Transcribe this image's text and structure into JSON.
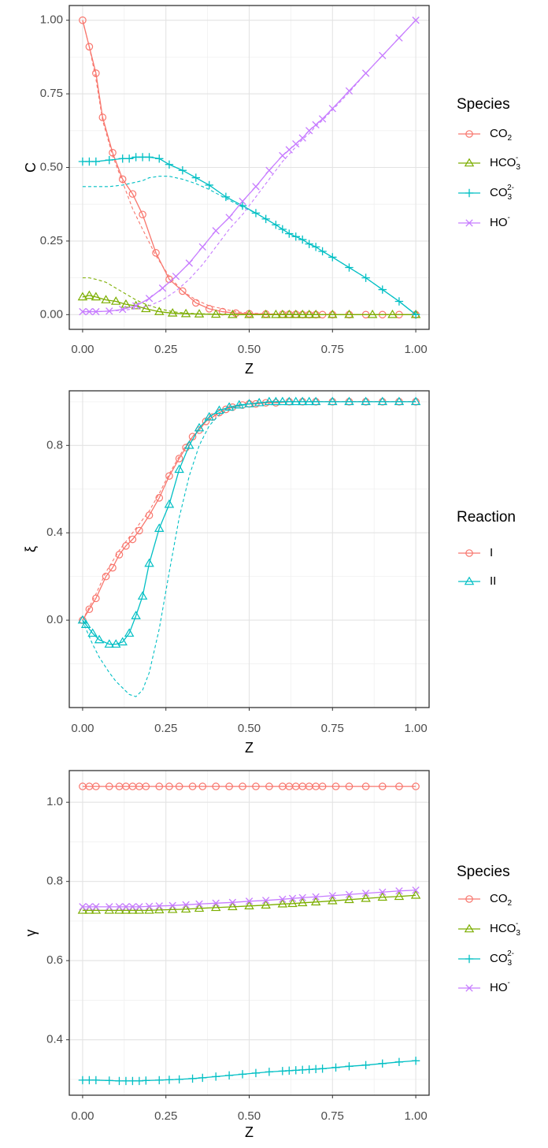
{
  "chart_data": [
    {
      "type": "line",
      "xlabel": "Z",
      "ylabel": "C",
      "xlim": [
        -0.04,
        1.04
      ],
      "ylim": [
        -0.05,
        1.05
      ],
      "xticks": [
        "0.00",
        "0.25",
        "0.50",
        "0.75",
        "1.00"
      ],
      "yticks": [
        "0.00",
        "0.25",
        "0.50",
        "0.75",
        "1.00"
      ],
      "grid": true,
      "legend": {
        "title": "Species",
        "position": "right"
      },
      "series": [
        {
          "name": "CO2",
          "name_base": "CO",
          "name_sub": "2",
          "name_sup": "",
          "color": "#F8766D",
          "marker": "circle",
          "x": [
            0,
            0.02,
            0.04,
            0.06,
            0.09,
            0.12,
            0.15,
            0.18,
            0.22,
            0.26,
            0.3,
            0.34,
            0.38,
            0.42,
            0.46,
            0.5,
            0.55,
            0.6,
            0.62,
            0.64,
            0.66,
            0.68,
            0.7,
            0.72,
            0.75,
            0.8,
            0.85,
            0.9,
            0.95,
            1.0
          ],
          "y": [
            1.0,
            0.91,
            0.82,
            0.67,
            0.55,
            0.46,
            0.41,
            0.34,
            0.21,
            0.12,
            0.08,
            0.04,
            0.02,
            0.01,
            0.005,
            0.003,
            0.002,
            0.001,
            0.001,
            0.001,
            0,
            0,
            0,
            0,
            0,
            0,
            0,
            0,
            0,
            0
          ],
          "dashed_y": [
            1.0,
            0.91,
            0.8,
            0.66,
            0.54,
            0.45,
            0.36,
            0.29,
            0.2,
            0.13,
            0.08,
            0.05,
            0.03,
            0.02,
            0.01,
            0.005,
            0.003,
            0.002,
            0.001,
            0.001,
            0,
            0,
            0,
            0,
            0,
            0,
            0,
            0,
            0,
            0
          ]
        },
        {
          "name": "HCO3-",
          "name_base": "HCO",
          "name_sub": "3",
          "name_sup": "-",
          "color": "#7CAE00",
          "marker": "triangle",
          "x": [
            0,
            0.02,
            0.04,
            0.07,
            0.1,
            0.13,
            0.16,
            0.19,
            0.23,
            0.27,
            0.31,
            0.35,
            0.4,
            0.45,
            0.5,
            0.55,
            0.58,
            0.6,
            0.62,
            0.64,
            0.66,
            0.68,
            0.7,
            0.75,
            0.8,
            0.87,
            0.93,
            1.0
          ],
          "y": [
            0.06,
            0.065,
            0.06,
            0.05,
            0.045,
            0.035,
            0.03,
            0.02,
            0.01,
            0.005,
            0.003,
            0.002,
            0.001,
            0,
            0,
            0,
            0,
            0,
            0,
            0,
            0,
            0,
            0,
            0,
            0,
            0,
            0,
            0
          ],
          "dashed_y": [
            0.125,
            0.125,
            0.12,
            0.11,
            0.09,
            0.07,
            0.05,
            0.035,
            0.02,
            0.01,
            0.005,
            0.003,
            0.002,
            0.001,
            0,
            0,
            0,
            0,
            0,
            0,
            0,
            0,
            0,
            0,
            0,
            0,
            0,
            0
          ]
        },
        {
          "name": "CO32-",
          "name_base": "CO",
          "name_sub": "3",
          "name_sup": "2-",
          "color": "#00BFC4",
          "marker": "plus",
          "x": [
            0,
            0.02,
            0.04,
            0.08,
            0.12,
            0.14,
            0.16,
            0.18,
            0.2,
            0.23,
            0.26,
            0.3,
            0.34,
            0.38,
            0.43,
            0.48,
            0.52,
            0.55,
            0.58,
            0.6,
            0.62,
            0.64,
            0.66,
            0.68,
            0.7,
            0.72,
            0.75,
            0.8,
            0.85,
            0.9,
            0.95,
            1.0
          ],
          "y": [
            0.52,
            0.52,
            0.52,
            0.525,
            0.53,
            0.53,
            0.535,
            0.535,
            0.535,
            0.53,
            0.51,
            0.49,
            0.465,
            0.44,
            0.4,
            0.37,
            0.345,
            0.325,
            0.305,
            0.29,
            0.275,
            0.265,
            0.255,
            0.24,
            0.23,
            0.215,
            0.195,
            0.16,
            0.125,
            0.085,
            0.045,
            0.0
          ],
          "dashed_y": [
            0.435,
            0.435,
            0.435,
            0.435,
            0.44,
            0.445,
            0.45,
            0.455,
            0.465,
            0.47,
            0.47,
            0.46,
            0.445,
            0.425,
            0.395,
            0.365,
            0.345,
            0.325,
            0.305,
            0.29,
            0.275,
            0.265,
            0.255,
            0.24,
            0.23,
            0.215,
            0.195,
            0.16,
            0.125,
            0.085,
            0.045,
            0.0
          ]
        },
        {
          "name": "HO-",
          "name_base": "HO",
          "name_sub": "",
          "name_sup": "-",
          "color": "#C77CFF",
          "marker": "cross",
          "x": [
            0,
            0.02,
            0.04,
            0.08,
            0.12,
            0.16,
            0.2,
            0.24,
            0.28,
            0.32,
            0.36,
            0.4,
            0.44,
            0.48,
            0.52,
            0.56,
            0.6,
            0.62,
            0.64,
            0.66,
            0.68,
            0.7,
            0.72,
            0.75,
            0.8,
            0.85,
            0.9,
            0.95,
            1.0
          ],
          "y": [
            0.01,
            0.01,
            0.01,
            0.012,
            0.018,
            0.03,
            0.055,
            0.09,
            0.13,
            0.175,
            0.23,
            0.285,
            0.33,
            0.385,
            0.435,
            0.49,
            0.54,
            0.56,
            0.58,
            0.6,
            0.625,
            0.645,
            0.665,
            0.7,
            0.76,
            0.82,
            0.88,
            0.94,
            1.0
          ],
          "dashed_y": [
            0.01,
            0.01,
            0.01,
            0.012,
            0.015,
            0.02,
            0.03,
            0.05,
            0.08,
            0.12,
            0.17,
            0.23,
            0.29,
            0.34,
            0.4,
            0.46,
            0.52,
            0.545,
            0.57,
            0.595,
            0.615,
            0.64,
            0.66,
            0.695,
            0.755,
            0.82,
            0.88,
            0.94,
            1.0
          ]
        }
      ]
    },
    {
      "type": "line",
      "xlabel": "Z",
      "ylabel": "ξ",
      "xlim": [
        -0.04,
        1.04
      ],
      "ylim": [
        -0.4,
        1.05
      ],
      "xticks": [
        "0.00",
        "0.25",
        "0.50",
        "0.75",
        "1.00"
      ],
      "yticks": [
        "0.0",
        "0.4",
        "0.8"
      ],
      "grid": true,
      "legend": {
        "title": "Reaction",
        "position": "right"
      },
      "series": [
        {
          "name": "I",
          "name_base": "I",
          "name_sub": "",
          "name_sup": "",
          "color": "#F8766D",
          "marker": "circle",
          "x": [
            0,
            0.02,
            0.04,
            0.07,
            0.09,
            0.11,
            0.13,
            0.15,
            0.17,
            0.2,
            0.23,
            0.26,
            0.29,
            0.31,
            0.33,
            0.35,
            0.37,
            0.39,
            0.41,
            0.43,
            0.45,
            0.48,
            0.5,
            0.52,
            0.55,
            0.58,
            0.62,
            0.66,
            0.7,
            0.75,
            0.8,
            0.85,
            0.9,
            0.95,
            1.0
          ],
          "y": [
            0.0,
            0.05,
            0.1,
            0.2,
            0.24,
            0.3,
            0.34,
            0.37,
            0.41,
            0.48,
            0.56,
            0.66,
            0.74,
            0.79,
            0.84,
            0.87,
            0.91,
            0.93,
            0.95,
            0.965,
            0.975,
            0.985,
            0.99,
            0.99,
            0.995,
            0.995,
            1.0,
            1.0,
            1.0,
            1.0,
            1.0,
            1.0,
            1.0,
            1.0,
            1.0
          ],
          "dashed_y": [
            0.0,
            0.06,
            0.12,
            0.22,
            0.27,
            0.32,
            0.36,
            0.4,
            0.44,
            0.5,
            0.58,
            0.67,
            0.75,
            0.8,
            0.84,
            0.88,
            0.91,
            0.93,
            0.95,
            0.965,
            0.975,
            0.985,
            0.99,
            0.99,
            0.995,
            0.995,
            1.0,
            1.0,
            1.0,
            1.0,
            1.0,
            1.0,
            1.0,
            1.0,
            1.0
          ]
        },
        {
          "name": "II",
          "name_base": "II",
          "name_sub": "",
          "name_sup": "",
          "color": "#00BFC4",
          "marker": "triangle",
          "x": [
            0,
            0.01,
            0.03,
            0.05,
            0.08,
            0.1,
            0.12,
            0.14,
            0.16,
            0.18,
            0.2,
            0.23,
            0.26,
            0.29,
            0.32,
            0.35,
            0.38,
            0.41,
            0.44,
            0.47,
            0.5,
            0.53,
            0.56,
            0.58,
            0.6,
            0.62,
            0.64,
            0.66,
            0.68,
            0.7,
            0.75,
            0.8,
            0.85,
            0.9,
            0.95,
            1.0
          ],
          "y": [
            0.0,
            -0.02,
            -0.06,
            -0.09,
            -0.11,
            -0.11,
            -0.1,
            -0.06,
            0.02,
            0.11,
            0.26,
            0.42,
            0.53,
            0.69,
            0.8,
            0.88,
            0.93,
            0.96,
            0.975,
            0.985,
            0.99,
            0.995,
            1.0,
            1.0,
            1.0,
            1.0,
            1.0,
            1.0,
            1.0,
            1.0,
            1.0,
            1.0,
            1.0,
            1.0,
            1.0,
            1.0
          ],
          "dashed_y": [
            0.0,
            -0.04,
            -0.11,
            -0.17,
            -0.24,
            -0.28,
            -0.31,
            -0.34,
            -0.35,
            -0.32,
            -0.24,
            -0.04,
            0.22,
            0.47,
            0.66,
            0.8,
            0.89,
            0.94,
            0.965,
            0.98,
            0.99,
            0.995,
            1.0,
            1.0,
            1.0,
            1.0,
            1.0,
            1.0,
            1.0,
            1.0,
            1.0,
            1.0,
            1.0,
            1.0,
            1.0,
            1.0
          ]
        }
      ]
    },
    {
      "type": "line",
      "xlabel": "Z",
      "ylabel": "γ",
      "xlim": [
        -0.04,
        1.04
      ],
      "ylim": [
        0.26,
        1.08
      ],
      "xticks": [
        "0.00",
        "0.25",
        "0.50",
        "0.75",
        "1.00"
      ],
      "yticks": [
        "0.4",
        "0.6",
        "0.8",
        "1.0"
      ],
      "grid": true,
      "legend": {
        "title": "Species",
        "position": "right"
      },
      "series": [
        {
          "name": "CO2",
          "name_base": "CO",
          "name_sub": "2",
          "name_sup": "",
          "color": "#F8766D",
          "marker": "circle",
          "x": [
            0,
            0.02,
            0.04,
            0.08,
            0.11,
            0.13,
            0.15,
            0.17,
            0.19,
            0.23,
            0.26,
            0.29,
            0.33,
            0.36,
            0.4,
            0.44,
            0.48,
            0.52,
            0.56,
            0.6,
            0.62,
            0.64,
            0.66,
            0.68,
            0.7,
            0.72,
            0.76,
            0.8,
            0.85,
            0.9,
            0.95,
            1.0
          ],
          "y": [
            1.04,
            1.04,
            1.04,
            1.04,
            1.04,
            1.04,
            1.04,
            1.04,
            1.04,
            1.04,
            1.04,
            1.04,
            1.04,
            1.04,
            1.04,
            1.04,
            1.04,
            1.04,
            1.04,
            1.04,
            1.04,
            1.04,
            1.04,
            1.04,
            1.04,
            1.04,
            1.04,
            1.04,
            1.04,
            1.04,
            1.04,
            1.04
          ]
        },
        {
          "name": "HCO3-",
          "name_base": "HCO",
          "name_sub": "3",
          "name_sup": "-",
          "color": "#7CAE00",
          "marker": "triangle",
          "x": [
            0,
            0.02,
            0.04,
            0.08,
            0.11,
            0.13,
            0.15,
            0.17,
            0.2,
            0.23,
            0.27,
            0.31,
            0.35,
            0.4,
            0.45,
            0.5,
            0.55,
            0.6,
            0.63,
            0.66,
            0.7,
            0.75,
            0.8,
            0.85,
            0.9,
            0.95,
            1.0
          ],
          "y": [
            0.727,
            0.727,
            0.727,
            0.727,
            0.727,
            0.727,
            0.727,
            0.727,
            0.727,
            0.728,
            0.729,
            0.73,
            0.732,
            0.734,
            0.736,
            0.738,
            0.74,
            0.743,
            0.744,
            0.746,
            0.748,
            0.751,
            0.754,
            0.757,
            0.76,
            0.762,
            0.765
          ]
        },
        {
          "name": "CO32-",
          "name_base": "CO",
          "name_sub": "3",
          "name_sup": "2-",
          "color": "#00BFC4",
          "marker": "plus",
          "x": [
            0,
            0.02,
            0.04,
            0.08,
            0.11,
            0.13,
            0.15,
            0.17,
            0.19,
            0.23,
            0.26,
            0.29,
            0.33,
            0.36,
            0.4,
            0.44,
            0.48,
            0.52,
            0.56,
            0.6,
            0.62,
            0.64,
            0.66,
            0.68,
            0.7,
            0.72,
            0.76,
            0.8,
            0.85,
            0.9,
            0.95,
            1.0
          ],
          "y": [
            0.298,
            0.298,
            0.298,
            0.297,
            0.296,
            0.296,
            0.296,
            0.296,
            0.297,
            0.298,
            0.299,
            0.3,
            0.302,
            0.304,
            0.307,
            0.31,
            0.313,
            0.316,
            0.319,
            0.321,
            0.322,
            0.323,
            0.324,
            0.325,
            0.326,
            0.327,
            0.33,
            0.333,
            0.336,
            0.34,
            0.344,
            0.347
          ]
        },
        {
          "name": "HO-",
          "name_base": "HO",
          "name_sub": "",
          "name_sup": "-",
          "color": "#C77CFF",
          "marker": "cross",
          "x": [
            0,
            0.02,
            0.04,
            0.08,
            0.11,
            0.13,
            0.15,
            0.17,
            0.2,
            0.23,
            0.27,
            0.31,
            0.35,
            0.4,
            0.45,
            0.5,
            0.55,
            0.6,
            0.63,
            0.66,
            0.7,
            0.75,
            0.8,
            0.85,
            0.9,
            0.95,
            1.0
          ],
          "y": [
            0.736,
            0.736,
            0.736,
            0.736,
            0.736,
            0.736,
            0.736,
            0.736,
            0.737,
            0.738,
            0.739,
            0.741,
            0.743,
            0.745,
            0.747,
            0.75,
            0.752,
            0.755,
            0.757,
            0.759,
            0.761,
            0.764,
            0.767,
            0.77,
            0.773,
            0.776,
            0.778
          ]
        }
      ]
    }
  ]
}
